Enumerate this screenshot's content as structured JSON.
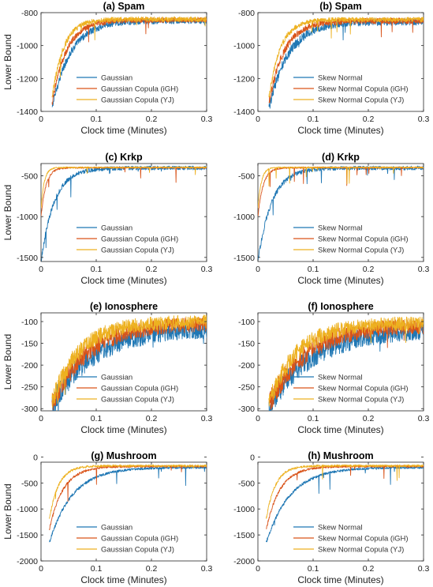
{
  "colors": {
    "blue": "#1f77b4",
    "red": "#d95319",
    "yellow": "#edb120"
  },
  "chart_data": [
    {
      "type": "line",
      "title": "(a) Spam",
      "xlabel": "Clock time (Minutes)",
      "ylabel": "Lower Bound",
      "xlim": [
        0,
        0.3
      ],
      "ylim": [
        -1400,
        -800
      ],
      "xticks": [
        0,
        0.1,
        0.2,
        0.3
      ],
      "yticks": [
        -1400,
        -1200,
        -1000,
        -800
      ],
      "xtick_labels": [
        "0",
        "0.1",
        "0.2",
        "0.3"
      ],
      "ytick_labels": [
        "-1400",
        "-1200",
        "-1000",
        "-800"
      ],
      "legend_position": "bottom-center",
      "series": [
        {
          "name": "Gaussian",
          "color": "#1f77b4",
          "t0": 0.02,
          "start": -1380,
          "end": -850,
          "rate": 30,
          "noise": 18
        },
        {
          "name": "Gaussian Copula (iGH)",
          "color": "#d95319",
          "t0": 0.02,
          "start": -1350,
          "end": -845,
          "rate": 38,
          "noise": 15
        },
        {
          "name": "Gaussian Copula (YJ)",
          "color": "#edb120",
          "t0": 0.02,
          "start": -1320,
          "end": -840,
          "rate": 48,
          "noise": 15
        }
      ]
    },
    {
      "type": "line",
      "title": "(b) Spam",
      "xlabel": "Clock time (Minutes)",
      "ylabel": "",
      "xlim": [
        0,
        0.3
      ],
      "ylim": [
        -1400,
        -800
      ],
      "xticks": [
        0,
        0.1,
        0.2,
        0.3
      ],
      "yticks": [
        -1400,
        -1200,
        -1000,
        -800
      ],
      "xtick_labels": [
        "0",
        "0.1",
        "0.2",
        "0.3"
      ],
      "ytick_labels": [
        "-1400",
        "-1200",
        "-1000",
        "-800"
      ],
      "legend_position": "bottom-center",
      "series": [
        {
          "name": "Skew Normal",
          "color": "#1f77b4",
          "t0": 0.02,
          "start": -1380,
          "end": -855,
          "rate": 28,
          "noise": 22
        },
        {
          "name": "Skew Normal Copula (iGH)",
          "color": "#d95319",
          "t0": 0.02,
          "start": -1350,
          "end": -850,
          "rate": 36,
          "noise": 18
        },
        {
          "name": "Skew Normal Copula (YJ)",
          "color": "#edb120",
          "t0": 0.02,
          "start": -1320,
          "end": -842,
          "rate": 48,
          "noise": 14
        }
      ]
    },
    {
      "type": "line",
      "title": "(c) Krkp",
      "xlabel": "Clock time (Minutes)",
      "ylabel": "Lower Bound",
      "xlim": [
        0,
        0.3
      ],
      "ylim": [
        -1550,
        -350
      ],
      "xticks": [
        0,
        0.1,
        0.2,
        0.3
      ],
      "yticks": [
        -1500,
        -1000,
        -500
      ],
      "xtick_labels": [
        "0",
        "0.1",
        "0.2",
        "0.3"
      ],
      "ytick_labels": [
        "-1500",
        "-1000",
        "-500"
      ],
      "legend_position": "bottom-center",
      "series": [
        {
          "name": "Gaussian",
          "color": "#1f77b4",
          "t0": 0.0,
          "start": -1550,
          "end": -405,
          "rate": 42,
          "noise": 25
        },
        {
          "name": "Gaussian Copula (iGH)",
          "color": "#d95319",
          "t0": 0.0,
          "start": -1000,
          "end": -400,
          "rate": 110,
          "noise": 10
        },
        {
          "name": "Gaussian Copula (YJ)",
          "color": "#edb120",
          "t0": 0.0,
          "start": -900,
          "end": -398,
          "rate": 170,
          "noise": 8
        }
      ]
    },
    {
      "type": "line",
      "title": "(d) Krkp",
      "xlabel": "Clock time (Minutes)",
      "ylabel": "",
      "xlim": [
        0,
        0.3
      ],
      "ylim": [
        -1550,
        -350
      ],
      "xticks": [
        0,
        0.1,
        0.2,
        0.3
      ],
      "yticks": [
        -1500,
        -1000,
        -500
      ],
      "xtick_labels": [
        "0",
        "0.1",
        "0.2",
        "0.3"
      ],
      "ytick_labels": [
        "-1500",
        "-1000",
        "-500"
      ],
      "legend_position": "bottom-center",
      "series": [
        {
          "name": "Skew Normal",
          "color": "#1f77b4",
          "t0": 0.0,
          "start": -1550,
          "end": -405,
          "rate": 40,
          "noise": 25
        },
        {
          "name": "Skew Normal Copula (iGH)",
          "color": "#d95319",
          "t0": 0.0,
          "start": -1000,
          "end": -400,
          "rate": 105,
          "noise": 10
        },
        {
          "name": "Skew Normal Copula (YJ)",
          "color": "#edb120",
          "t0": 0.0,
          "start": -900,
          "end": -398,
          "rate": 165,
          "noise": 8
        }
      ]
    },
    {
      "type": "line",
      "title": "(e) Ionosphere",
      "xlabel": "Clock time (Minutes)",
      "ylabel": "Lower Bound",
      "xlim": [
        0,
        0.3
      ],
      "ylim": [
        -305,
        -80
      ],
      "xticks": [
        0,
        0.1,
        0.2,
        0.3
      ],
      "yticks": [
        -300,
        -250,
        -200,
        -150,
        -100
      ],
      "xtick_labels": [
        "0",
        "0.1",
        "0.2",
        "0.3"
      ],
      "ytick_labels": [
        "-300",
        "-250",
        "-200",
        "-150",
        "-100"
      ],
      "legend_position": "bottom-center",
      "series": [
        {
          "name": "Gaussian",
          "color": "#1f77b4",
          "t0": 0.02,
          "start": -295,
          "end": -115,
          "rate": 14,
          "noise": 20
        },
        {
          "name": "Gaussian Copula (iGH)",
          "color": "#d95319",
          "t0": 0.02,
          "start": -290,
          "end": -105,
          "rate": 16,
          "noise": 17
        },
        {
          "name": "Gaussian Copula (YJ)",
          "color": "#edb120",
          "t0": 0.02,
          "start": -285,
          "end": -100,
          "rate": 20,
          "noise": 16
        }
      ]
    },
    {
      "type": "line",
      "title": "(f) Ionosphere",
      "xlabel": "Clock time (Minutes)",
      "ylabel": "",
      "xlim": [
        0,
        0.3
      ],
      "ylim": [
        -305,
        -80
      ],
      "xticks": [
        0,
        0.1,
        0.2,
        0.3
      ],
      "yticks": [
        -300,
        -250,
        -200,
        -150,
        -100
      ],
      "xtick_labels": [
        "0",
        "0.1",
        "0.2",
        "0.3"
      ],
      "ytick_labels": [
        "-300",
        "-250",
        "-200",
        "-150",
        "-100"
      ],
      "legend_position": "bottom-center",
      "series": [
        {
          "name": "Skew Normal",
          "color": "#1f77b4",
          "t0": 0.02,
          "start": -295,
          "end": -118,
          "rate": 13,
          "noise": 20
        },
        {
          "name": "Skew Normal Copula (iGH)",
          "color": "#d95319",
          "t0": 0.02,
          "start": -290,
          "end": -108,
          "rate": 15,
          "noise": 18
        },
        {
          "name": "Skew Normal Copula (YJ)",
          "color": "#edb120",
          "t0": 0.02,
          "start": -285,
          "end": -103,
          "rate": 19,
          "noise": 16
        }
      ]
    },
    {
      "type": "line",
      "title": "(g) Mushroom",
      "xlabel": "Clock time (Minutes)",
      "ylabel": "Lower Bound",
      "xlim": [
        0,
        0.3
      ],
      "ylim": [
        -2000,
        -100
      ],
      "xticks": [
        0,
        0.1,
        0.2,
        0.3
      ],
      "yticks": [
        -2000,
        -1500,
        -1000,
        -500,
        0
      ],
      "xtick_labels": [
        "0",
        "0.1",
        "0.2",
        "0.3"
      ],
      "ytick_labels": [
        "-2000",
        "-1500",
        "-1000",
        "-500",
        "0"
      ],
      "legend_position": "bottom-center",
      "series": [
        {
          "name": "Gaussian",
          "color": "#1f77b4",
          "t0": 0.015,
          "start": -1650,
          "end": -200,
          "rate": 24,
          "noise": 22
        },
        {
          "name": "Gaussian Copula (iGH)",
          "color": "#d95319",
          "t0": 0.015,
          "start": -1400,
          "end": -180,
          "rate": 40,
          "noise": 20
        },
        {
          "name": "Gaussian Copula (YJ)",
          "color": "#edb120",
          "t0": 0.015,
          "start": -1200,
          "end": -170,
          "rate": 60,
          "noise": 20
        }
      ]
    },
    {
      "type": "line",
      "title": "(h) Mushroom",
      "xlabel": "Clock time (Minutes)",
      "ylabel": "",
      "xlim": [
        0,
        0.3
      ],
      "ylim": [
        -2000,
        -100
      ],
      "xticks": [
        0,
        0.1,
        0.2,
        0.3
      ],
      "yticks": [
        -2000,
        -1500,
        -1000,
        -500,
        0
      ],
      "xtick_labels": [
        "0",
        "0.1",
        "0.2",
        "0.3"
      ],
      "ytick_labels": [
        "-2000",
        "-1500",
        "-1000",
        "-500",
        "0"
      ],
      "legend_position": "bottom-center",
      "series": [
        {
          "name": "Skew Normal",
          "color": "#1f77b4",
          "t0": 0.015,
          "start": -1650,
          "end": -200,
          "rate": 23,
          "noise": 22
        },
        {
          "name": "Skew Normal Copula (iGH)",
          "color": "#d95319",
          "t0": 0.015,
          "start": -1400,
          "end": -180,
          "rate": 40,
          "noise": 20
        },
        {
          "name": "Skew Normal Copula (YJ)",
          "color": "#edb120",
          "t0": 0.015,
          "start": -1200,
          "end": -170,
          "rate": 60,
          "noise": 20
        }
      ]
    }
  ]
}
